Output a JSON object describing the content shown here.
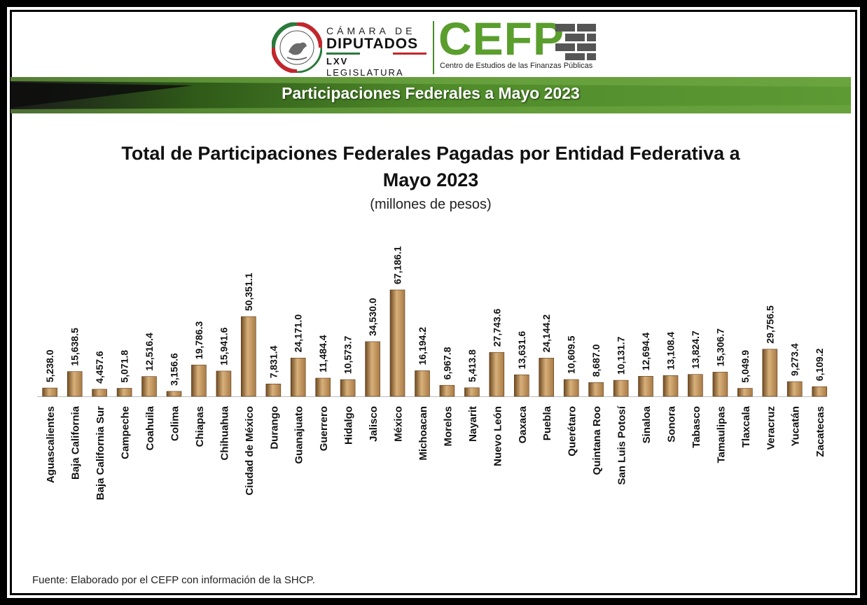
{
  "header": {
    "camara_line1": "CÁMARA DE",
    "camara_line2": "DIPUTADOS",
    "legislatura_num": "LXV",
    "legislatura_word": "LEGISLATURA",
    "cefp_name": "CEFP",
    "cefp_subtitle": "Centro de Estudios de las Finanzas Públicas",
    "seal_icon": "mexican-eagle-seal-icon",
    "bricks_icon": "brick-wall-icon"
  },
  "banner": {
    "title": "Participaciones Federales a Mayo 2023"
  },
  "colors": {
    "bar_light": "#d8b07a",
    "bar_mid": "#a87a45",
    "bar_dark": "#6e4a22",
    "banner_green": "#4f8a2a",
    "banner_dark": "#1a1a1a",
    "cefp_green": "#5a9e2e",
    "flag_green": "#2a7a3a",
    "flag_red": "#c0272d"
  },
  "chart_data": {
    "type": "bar",
    "title": "Total de Participaciones Federales Pagadas por Entidad Federativa a Mayo 2023",
    "subtitle": "(millones de pesos)",
    "categories": [
      "Aguascalientes",
      "Baja California",
      "Baja California Sur",
      "Campeche",
      "Coahuila",
      "Colima",
      "Chiapas",
      "Chihuahua",
      "Ciudad de México",
      "Durango",
      "Guanajuato",
      "Guerrero",
      "Hidalgo",
      "Jalisco",
      "México",
      "Michoacan",
      "Morelos",
      "Nayarit",
      "Nuevo León",
      "Oaxaca",
      "Puebla",
      "Querétaro",
      "Quintana Roo",
      "San Luis Potosí",
      "Sinaloa",
      "Sonora",
      "Tabasco",
      "Tamaulipas",
      "Tlaxcala",
      "Veracruz",
      "Yucatán",
      "Zacatecas"
    ],
    "values": [
      5238.0,
      15638.5,
      4457.6,
      5071.8,
      12516.4,
      3156.6,
      19786.3,
      15941.6,
      50351.1,
      7831.4,
      24171.0,
      11484.4,
      10573.7,
      34530.0,
      67186.1,
      16194.2,
      6967.8,
      5413.8,
      27743.6,
      13631.6,
      24144.2,
      10609.5,
      8687.0,
      10131.7,
      12694.4,
      13108.4,
      13824.7,
      15306.7,
      5049.9,
      29756.5,
      9273.4,
      6109.2
    ],
    "labels": [
      "5,238.0",
      "15,638.5",
      "4,457.6",
      "5,071.8",
      "12,516.4",
      "3,156.6",
      "19,786.3",
      "15,941.6",
      "50,351.1",
      "7,831.4",
      "24,171.0",
      "11,484.4",
      "10,573.7",
      "34,530.0",
      "67,186.1",
      "16,194.2",
      "6,967.8",
      "5,413.8",
      "27,743.6",
      "13,631.6",
      "24,144.2",
      "10,609.5",
      "8,687.0",
      "10,131.7",
      "12,694.4",
      "13,108.4",
      "13,824.7",
      "15,306.7",
      "5,049.9",
      "29,756.5",
      "9,273.4",
      "6,109.2"
    ],
    "ylim": [
      0,
      67186.1
    ],
    "grid": false,
    "legend": "none"
  },
  "source": "Fuente: Elaborado por el CEFP con información de la SHCP."
}
